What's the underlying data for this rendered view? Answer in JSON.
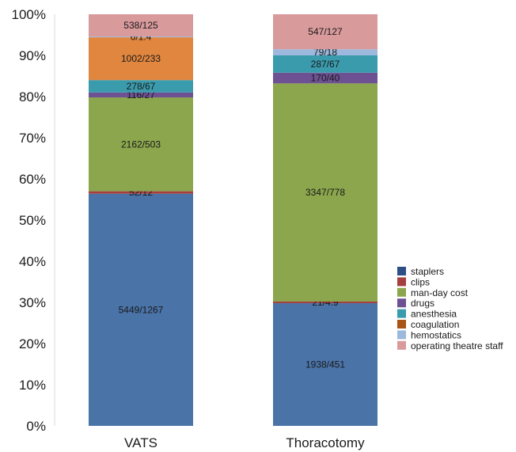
{
  "chart_data": {
    "type": "bar",
    "stacked": true,
    "percent": true,
    "categories": [
      "VATS",
      "Thoracotomy"
    ],
    "y_ticks": [
      "0%",
      "10%",
      "20%",
      "30%",
      "40%",
      "50%",
      "60%",
      "70%",
      "80%",
      "90%",
      "100%"
    ],
    "ylim": [
      0,
      100
    ],
    "grid": false,
    "legend_position": "right",
    "series": [
      {
        "name": "staplers",
        "color": "#4a73a8",
        "legend_color": "#2e4e86",
        "values": [
          56.4,
          29.8
        ],
        "labels": [
          "5449/1267",
          "1938/451"
        ]
      },
      {
        "name": "clips",
        "color": "#a5403f",
        "legend_color": "#a5403f",
        "values": [
          0.6,
          0.4
        ],
        "labels": [
          "52/12",
          "21/4.9"
        ]
      },
      {
        "name": "man-day cost",
        "color": "#8ba64d",
        "legend_color": "#8ba64d",
        "values": [
          22.8,
          53.0
        ],
        "labels": [
          "2162/503",
          "3347/778"
        ]
      },
      {
        "name": "drugs",
        "color": "#6d5192",
        "legend_color": "#6d5192",
        "values": [
          1.2,
          2.6
        ],
        "labels": [
          "116/27",
          "170/40"
        ]
      },
      {
        "name": "anesthesia",
        "color": "#3a9bad",
        "legend_color": "#3a9bad",
        "values": [
          3.0,
          4.2
        ],
        "labels": [
          "278/67",
          "287/67"
        ]
      },
      {
        "name": "coagulation",
        "color": "#e0863f",
        "legend_color": "#a75416",
        "values": [
          10.4,
          0.0
        ],
        "labels": [
          "1002/233",
          ""
        ]
      },
      {
        "name": "hemostatics",
        "color": "#9cb8dc",
        "legend_color": "#9cb8dc",
        "values": [
          0.2,
          1.5
        ],
        "labels": [
          "6/1.4",
          "79/18"
        ]
      },
      {
        "name": "operating theatre staff",
        "color": "#d99a9c",
        "legend_color": "#d99a9c",
        "values": [
          5.4,
          8.5
        ],
        "labels": [
          "538/125",
          "547/127"
        ]
      }
    ]
  }
}
